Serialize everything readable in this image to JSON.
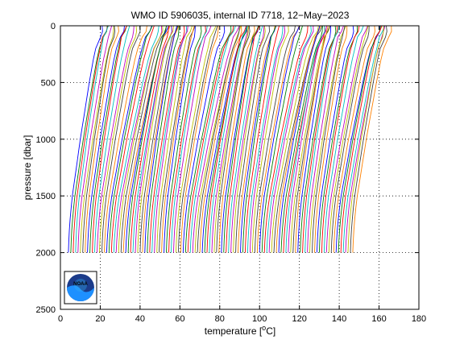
{
  "chart_data": {
    "type": "line",
    "title": "WMO ID 5906035, internal ID 7718, 12−May−2023",
    "xlabel": "temperature [",
    "xlabel_unit": "o",
    "xlabel_suffix": "C]",
    "ylabel": "pressure [dbar]",
    "xlim": [
      0,
      180
    ],
    "ylim": [
      2500,
      0
    ],
    "y_reversed": true,
    "xticks": [
      "0",
      "20",
      "40",
      "60",
      "80",
      "100",
      "120",
      "140",
      "160",
      "180"
    ],
    "yticks": [
      "0",
      "500",
      "1000",
      "1500",
      "2000",
      "2500"
    ],
    "grid": "dotted",
    "profile_count": 120,
    "profile_offset_c": 1.2,
    "first_profile_start_c": 4,
    "profile_shape": {
      "pressure": [
        0,
        50,
        100,
        200,
        300,
        400,
        500,
        600,
        700,
        800,
        900,
        1000,
        1100,
        1200,
        1300,
        1400,
        1500,
        1600,
        1700,
        1800,
        1900,
        2000
      ],
      "temperature": [
        20,
        19.6,
        18.5,
        16.8,
        15.6,
        14.6,
        13.6,
        12.7,
        11.8,
        10.9,
        10.0,
        9.1,
        8.3,
        7.5,
        6.7,
        5.9,
        5.1,
        4.5,
        4.0,
        3.6,
        3.3,
        3.1
      ]
    },
    "warm_seasons": [
      {
        "profile": 20,
        "extra_c": 6
      },
      {
        "profile": 52,
        "extra_c": 6
      },
      {
        "profile": 85,
        "extra_c": 6
      },
      {
        "profile": 112,
        "extra_c": 4
      }
    ],
    "colors": [
      "#0000ff",
      "#008000",
      "#ff0000",
      "#00bfbf",
      "#bf00bf",
      "#bfbf00",
      "#404040",
      "#ff8000"
    ]
  },
  "logo": {
    "text": "NOAA",
    "colors": {
      "dark": "#1b3b8a",
      "light": "#1e90ff",
      "sky": "#36b4f0"
    }
  }
}
